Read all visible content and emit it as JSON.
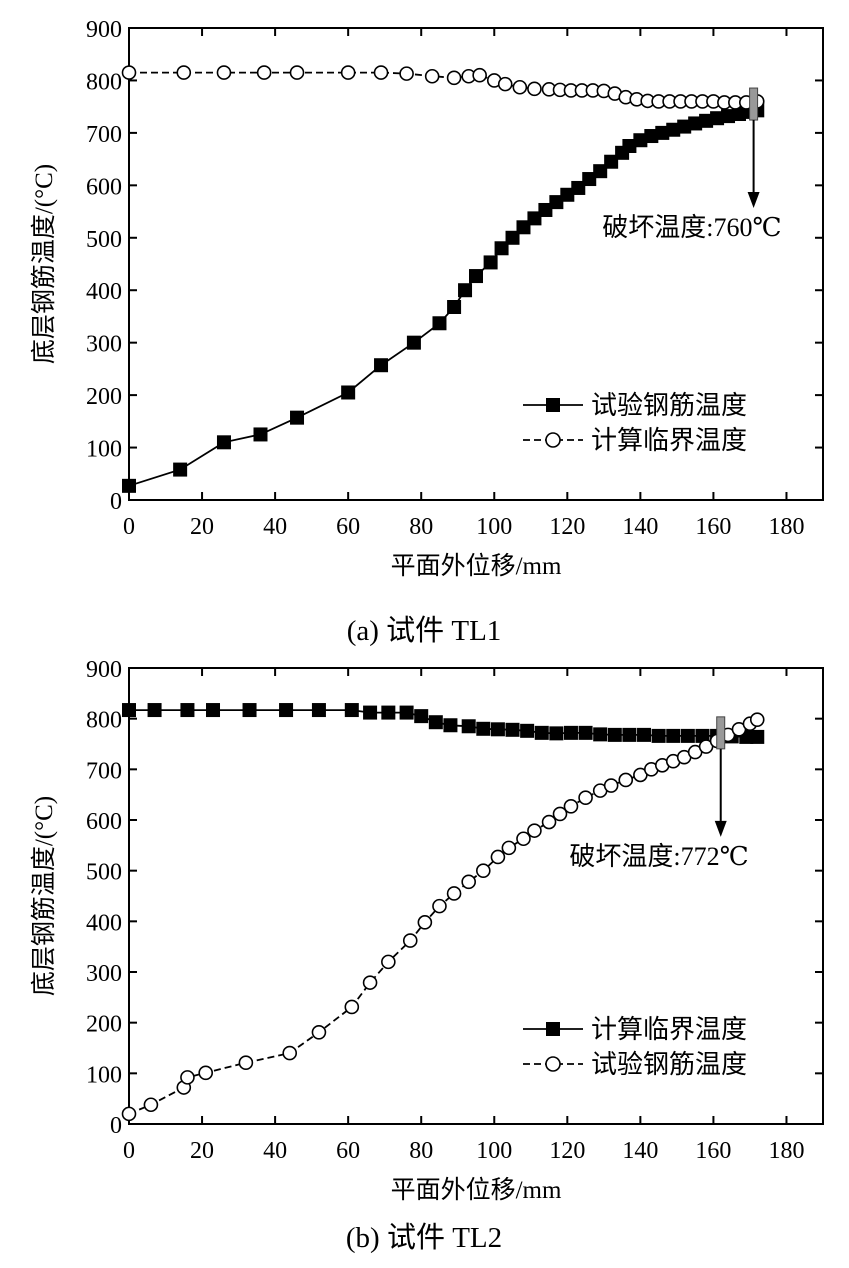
{
  "chart_data": [
    {
      "type": "line",
      "caption": "(a)  试件 TL1",
      "xlabel": "平面外位移/mm",
      "ylabel": "底层钢筋温度/(°C)",
      "xlim": [
        0,
        190
      ],
      "ylim": [
        0,
        900
      ],
      "xticks": [
        "0",
        "20",
        "40",
        "60",
        "80",
        "100",
        "120",
        "140",
        "160",
        "180"
      ],
      "yticks": [
        "0",
        "100",
        "200",
        "300",
        "400",
        "500",
        "600",
        "700",
        "800",
        "900"
      ],
      "annotation": {
        "text": "破坏温度:760℃",
        "x": 171,
        "y": 755
      },
      "legend_position": "lower-right",
      "series": [
        {
          "name": "试验钢筋温度",
          "marker": "square",
          "x": [
            0,
            14,
            26,
            36,
            46,
            60,
            69,
            78,
            85,
            89,
            92,
            95,
            99,
            102,
            105,
            108,
            111,
            114,
            117,
            120,
            123,
            126,
            129,
            132,
            135,
            137,
            140,
            143,
            146,
            149,
            152,
            155,
            158,
            161,
            164,
            167,
            170,
            172
          ],
          "y": [
            27,
            58,
            110,
            125,
            157,
            205,
            257,
            300,
            337,
            368,
            400,
            427,
            453,
            480,
            500,
            520,
            537,
            553,
            568,
            582,
            595,
            612,
            627,
            645,
            662,
            675,
            686,
            694,
            700,
            706,
            712,
            718,
            723,
            728,
            732,
            736,
            740,
            743
          ]
        },
        {
          "name": "计算临界温度",
          "marker": "circle",
          "x": [
            0,
            15,
            26,
            37,
            46,
            60,
            69,
            76,
            83,
            89,
            93,
            96,
            100,
            103,
            107,
            111,
            115,
            118,
            121,
            124,
            127,
            130,
            133,
            136,
            139,
            142,
            145,
            148,
            151,
            154,
            157,
            160,
            163,
            166,
            169,
            172
          ],
          "y": [
            815,
            815,
            815,
            815,
            815,
            815,
            815,
            813,
            808,
            805,
            808,
            810,
            800,
            793,
            787,
            784,
            783,
            782,
            781,
            781,
            781,
            780,
            775,
            768,
            764,
            761,
            760,
            760,
            760,
            760,
            760,
            760,
            758,
            758,
            758,
            760
          ]
        }
      ]
    },
    {
      "type": "line",
      "caption": "(b)  试件 TL2",
      "xlabel": "平面外位移/mm",
      "ylabel": "底层钢筋温度/(°C)",
      "xlim": [
        0,
        190
      ],
      "ylim": [
        0,
        900
      ],
      "xticks": [
        "0",
        "20",
        "40",
        "60",
        "80",
        "100",
        "120",
        "140",
        "160",
        "180"
      ],
      "yticks": [
        "0",
        "100",
        "200",
        "300",
        "400",
        "500",
        "600",
        "700",
        "800",
        "900"
      ],
      "annotation": {
        "text": "破坏温度:772℃",
        "x": 162,
        "y": 772
      },
      "legend_position": "lower-right",
      "series": [
        {
          "name": "计算临界温度",
          "marker": "square",
          "x": [
            0,
            7,
            16,
            23,
            33,
            43,
            52,
            61,
            66,
            71,
            76,
            80,
            84,
            88,
            93,
            97,
            101,
            105,
            109,
            113,
            117,
            121,
            125,
            129,
            133,
            137,
            141,
            145,
            149,
            153,
            157,
            161,
            165,
            169,
            172
          ],
          "y": [
            817,
            817,
            817,
            817,
            817,
            817,
            817,
            817,
            812,
            812,
            812,
            805,
            793,
            787,
            785,
            780,
            779,
            778,
            776,
            772,
            771,
            772,
            772,
            769,
            768,
            768,
            768,
            766,
            766,
            766,
            766,
            766,
            765,
            764,
            764
          ]
        },
        {
          "name": "试验钢筋温度",
          "marker": "circle",
          "x": [
            0,
            6,
            15,
            16,
            21,
            32,
            44,
            52,
            61,
            66,
            71,
            77,
            81,
            85,
            89,
            93,
            97,
            101,
            104,
            108,
            111,
            115,
            118,
            121,
            125,
            129,
            132,
            136,
            140,
            143,
            146,
            149,
            152,
            155,
            158,
            161,
            164,
            167,
            170,
            172
          ],
          "y": [
            20,
            38,
            72,
            92,
            101,
            121,
            140,
            181,
            231,
            279,
            320,
            362,
            398,
            430,
            455,
            478,
            500,
            527,
            545,
            563,
            579,
            596,
            612,
            627,
            644,
            658,
            668,
            679,
            689,
            700,
            708,
            716,
            724,
            734,
            745,
            756,
            768,
            779,
            790,
            798
          ]
        }
      ]
    }
  ]
}
